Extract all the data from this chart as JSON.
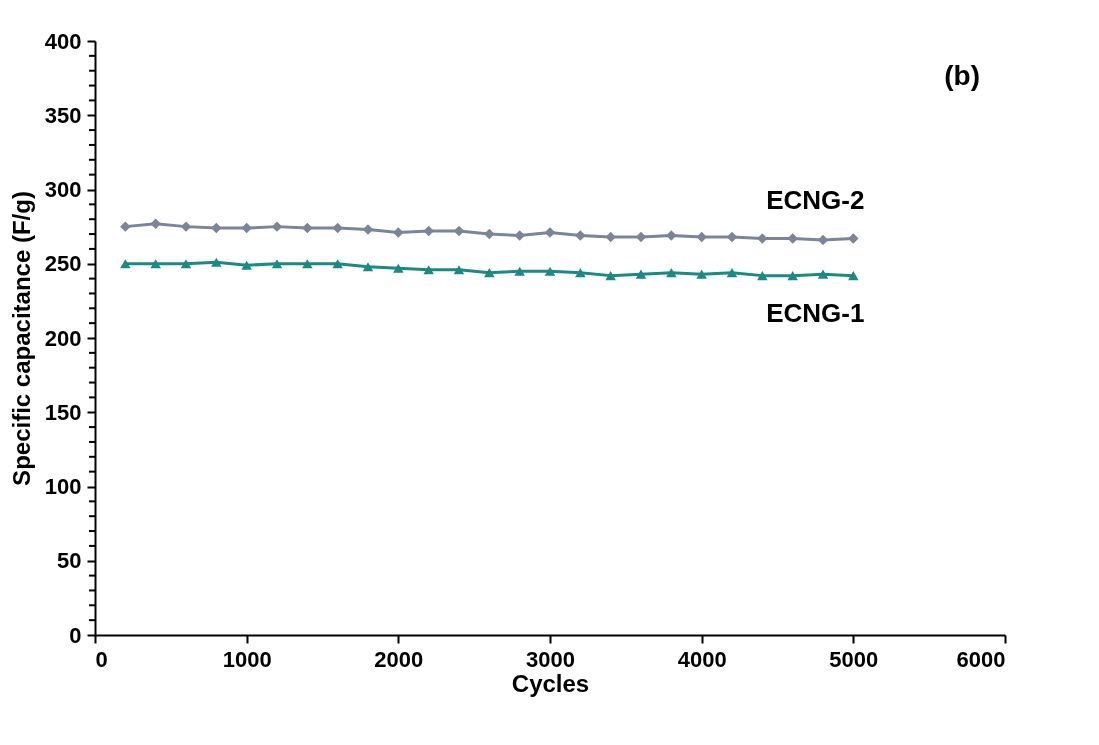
{
  "chart_data": {
    "type": "line",
    "xlabel": "Cycles",
    "ylabel": "Specific capacitance (F/g)",
    "annotations": [
      "(b)"
    ],
    "x": [
      200,
      400,
      600,
      800,
      1000,
      1200,
      1400,
      1600,
      1800,
      2000,
      2200,
      2400,
      2600,
      2800,
      3000,
      3200,
      3400,
      3600,
      3800,
      4000,
      4200,
      4400,
      4600,
      4800,
      5000
    ],
    "series": [
      {
        "name": "ECNG-2",
        "color": "#7a8599",
        "marker": "diamond",
        "values": [
          275,
          277,
          275,
          274,
          274,
          275,
          274,
          274,
          273,
          271,
          272,
          272,
          270,
          269,
          271,
          269,
          268,
          268,
          269,
          268,
          268,
          267,
          267,
          266,
          267
        ]
      },
      {
        "name": "ECNG-1",
        "color": "#1a8a84",
        "marker": "triangle",
        "values": [
          250,
          250,
          250,
          251,
          249,
          250,
          250,
          250,
          248,
          247,
          246,
          246,
          244,
          245,
          245,
          244,
          242,
          243,
          244,
          243,
          244,
          242,
          242,
          243,
          242
        ]
      }
    ],
    "xlim": [
      0,
      6000
    ],
    "xticks": [
      0,
      1000,
      2000,
      3000,
      4000,
      5000,
      6000
    ],
    "ylim": [
      0,
      400
    ],
    "yticks": [
      0,
      {
        "value": 10,
        "label": null
      },
      {
        "value": 20,
        "label": null
      },
      {
        "value": 30,
        "label": null
      },
      {
        "value": 40,
        "label": null
      },
      50,
      {
        "value": 60,
        "label": null
      },
      {
        "value": 70,
        "label": null
      },
      {
        "value": 80,
        "label": null
      },
      {
        "value": 90,
        "label": null
      },
      100,
      {
        "value": 110,
        "label": null
      },
      {
        "value": 120,
        "label": null
      },
      {
        "value": 130,
        "label": null
      },
      {
        "value": 140,
        "label": null
      },
      150,
      {
        "value": 160,
        "label": null
      },
      {
        "value": 170,
        "label": null
      },
      {
        "value": 180,
        "label": null
      },
      {
        "value": 190,
        "label": null
      },
      200,
      {
        "value": 210,
        "label": null
      },
      {
        "value": 220,
        "label": null
      },
      {
        "value": 230,
        "label": null
      },
      {
        "value": 240,
        "label": null
      },
      250,
      {
        "value": 260,
        "label": null
      },
      {
        "value": 270,
        "label": null
      },
      {
        "value": 280,
        "label": null
      },
      {
        "value": 290,
        "label": null
      },
      300,
      {
        "value": 310,
        "label": null
      },
      {
        "value": 320,
        "label": null
      },
      {
        "value": 330,
        "label": null
      },
      {
        "value": 340,
        "label": null
      },
      350,
      {
        "value": 360,
        "label": null
      },
      {
        "value": 370,
        "label": null
      },
      {
        "value": 380,
        "label": null
      },
      {
        "value": 390,
        "label": null
      },
      400
    ],
    "grid": false,
    "legend": false,
    "line_style": "solid"
  }
}
